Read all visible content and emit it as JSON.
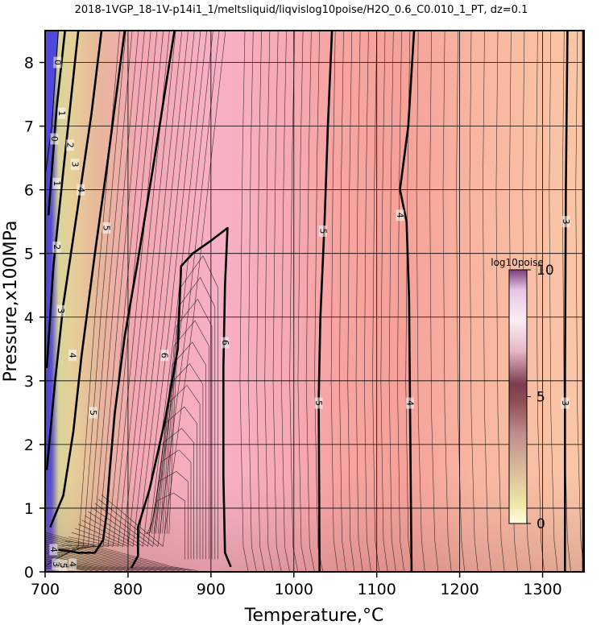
{
  "chart_data": {
    "type": "heatmap",
    "title": "2018-1VGP_18-1V-p14i1_1/meltsliquid/liqvislog10poise/H2O_0.6_C0.010_1_PT, dz=0.1",
    "xlabel": "Temperature,°C",
    "ylabel": "Pressure,x100MPa",
    "xlim": [
      700,
      1350
    ],
    "ylim": [
      0,
      8.5
    ],
    "x_ticks": [
      "700",
      "800",
      "900",
      "1000",
      "1100",
      "1200",
      "1300"
    ],
    "y_ticks": [
      "0",
      "1",
      "2",
      "3",
      "4",
      "5",
      "6",
      "7",
      "8"
    ],
    "grid": true,
    "colorbar": {
      "title": "log10poise",
      "min": 0,
      "max": 10,
      "ticks": [
        "0",
        "5",
        "10"
      ],
      "position": "right"
    },
    "contour_interval": 0.1,
    "major_contours": [
      {
        "level": "3",
        "points": [
          [
            1327,
            0
          ],
          [
            1327,
            3.0
          ],
          [
            1328,
            6.0
          ],
          [
            1330,
            8.5
          ]
        ]
      },
      {
        "level": "4",
        "points": [
          [
            1142,
            0
          ],
          [
            1140,
            2.7
          ],
          [
            1139,
            4.3
          ],
          [
            1136,
            5.5
          ],
          [
            1128,
            6.0
          ],
          [
            1138,
            7.0
          ],
          [
            1145,
            8.5
          ]
        ]
      },
      {
        "level": "5",
        "points": [
          [
            1031,
            0
          ],
          [
            1030,
            2.7
          ],
          [
            1032,
            4.0
          ],
          [
            1037,
            5.5
          ],
          [
            1041,
            7.0
          ],
          [
            1046,
            8.5
          ]
        ]
      },
      {
        "level": "6",
        "points": [
          [
            924,
            0.08
          ],
          [
            917,
            0.3
          ],
          [
            915,
            1.5
          ],
          [
            915,
            3.2
          ],
          [
            917,
            4.5
          ],
          [
            920,
            5.4
          ],
          [
            900,
            5.2
          ],
          [
            878,
            5.0
          ],
          [
            864,
            4.8
          ],
          [
            860,
            3.5
          ],
          [
            845,
            2.4
          ],
          [
            826,
            1.3
          ],
          [
            812,
            0.7
          ],
          [
            812,
            0.25
          ],
          [
            804,
            0.06
          ]
        ]
      },
      {
        "level": "5",
        "points": [
          [
            716,
            0.35
          ],
          [
            740,
            0.3
          ],
          [
            760,
            0.3
          ],
          [
            770,
            0.5
          ],
          [
            774,
            0.9
          ],
          [
            778,
            1.6
          ],
          [
            784,
            2.5
          ],
          [
            796,
            3.7
          ],
          [
            812,
            4.9
          ],
          [
            832,
            6.5
          ],
          [
            856,
            8.5
          ]
        ]
      },
      {
        "level": "4",
        "points": [
          [
            706,
            0.7
          ],
          [
            722,
            1.2
          ],
          [
            734,
            2.2
          ],
          [
            744,
            3.4
          ],
          [
            760,
            5.0
          ],
          [
            776,
            6.5
          ],
          [
            796,
            8.5
          ]
        ]
      },
      {
        "level": "3",
        "points": [
          [
            702,
            1.6
          ],
          [
            712,
            3.0
          ],
          [
            722,
            4.2
          ],
          [
            738,
            5.6
          ],
          [
            756,
            7.2
          ],
          [
            768,
            8.5
          ]
        ]
      },
      {
        "level": "2",
        "points": [
          [
            702,
            3.2
          ],
          [
            710,
            4.8
          ],
          [
            722,
            6.3
          ],
          [
            740,
            8.5
          ]
        ]
      },
      {
        "level": "1",
        "points": [
          [
            704,
            5.6
          ],
          [
            714,
            7.3
          ],
          [
            724,
            8.5
          ]
        ]
      },
      {
        "level": "0",
        "points": [
          [
            702,
            7.0
          ],
          [
            712,
            8.5
          ]
        ]
      }
    ],
    "label_positions": [
      {
        "text": "3",
        "x": 1328,
        "y": 5.5
      },
      {
        "text": "3",
        "x": 1327,
        "y": 2.65
      },
      {
        "text": "4",
        "x": 1128,
        "y": 5.6
      },
      {
        "text": "4",
        "x": 1140,
        "y": 2.65
      },
      {
        "text": "5",
        "x": 1035,
        "y": 5.35
      },
      {
        "text": "5",
        "x": 1030,
        "y": 2.65
      },
      {
        "text": "6",
        "x": 917,
        "y": 3.6
      },
      {
        "text": "6",
        "x": 844,
        "y": 3.4
      },
      {
        "text": "5",
        "x": 774,
        "y": 5.4
      },
      {
        "text": "5",
        "x": 758,
        "y": 2.5
      },
      {
        "text": "4",
        "x": 743,
        "y": 6.0
      },
      {
        "text": "4",
        "x": 733,
        "y": 3.4
      },
      {
        "text": "3",
        "x": 736,
        "y": 6.4
      },
      {
        "text": "3",
        "x": 719,
        "y": 4.1
      },
      {
        "text": "2",
        "x": 730,
        "y": 6.7
      },
      {
        "text": "2",
        "x": 714,
        "y": 5.1
      },
      {
        "text": "1",
        "x": 720,
        "y": 7.2
      },
      {
        "text": "1",
        "x": 714,
        "y": 6.1
      },
      {
        "text": "0",
        "x": 715,
        "y": 8.0
      },
      {
        "text": "0",
        "x": 711,
        "y": 6.8
      },
      {
        "text": "4",
        "x": 710,
        "y": 0.35
      },
      {
        "text": "3",
        "x": 713,
        "y": 0.12
      },
      {
        "text": "5",
        "x": 722,
        "y": 0.1
      },
      {
        "text": "4",
        "x": 733,
        "y": 0.12
      }
    ]
  }
}
